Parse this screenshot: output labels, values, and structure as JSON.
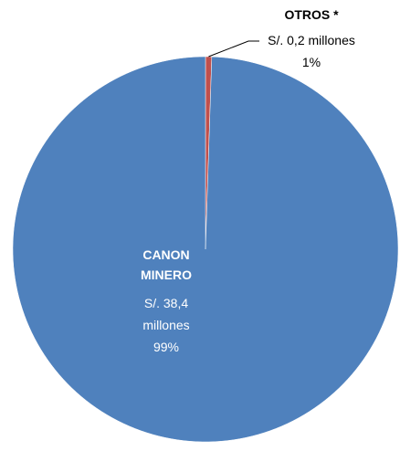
{
  "chart_data": {
    "type": "pie",
    "title": "",
    "slices": [
      {
        "name": "OTROS *",
        "value": 0.2,
        "value_text": "S/. 0,2 millones",
        "percent_text": "1%",
        "color": "#C0504D"
      },
      {
        "name": "CANON MINERO",
        "name_lines": [
          "CANON",
          "MINERO"
        ],
        "value": 38.4,
        "value_lines": [
          "S/. 38,4",
          "millones"
        ],
        "percent_text": "99%",
        "color": "#4F81BD"
      }
    ],
    "unit": "millones de soles"
  }
}
